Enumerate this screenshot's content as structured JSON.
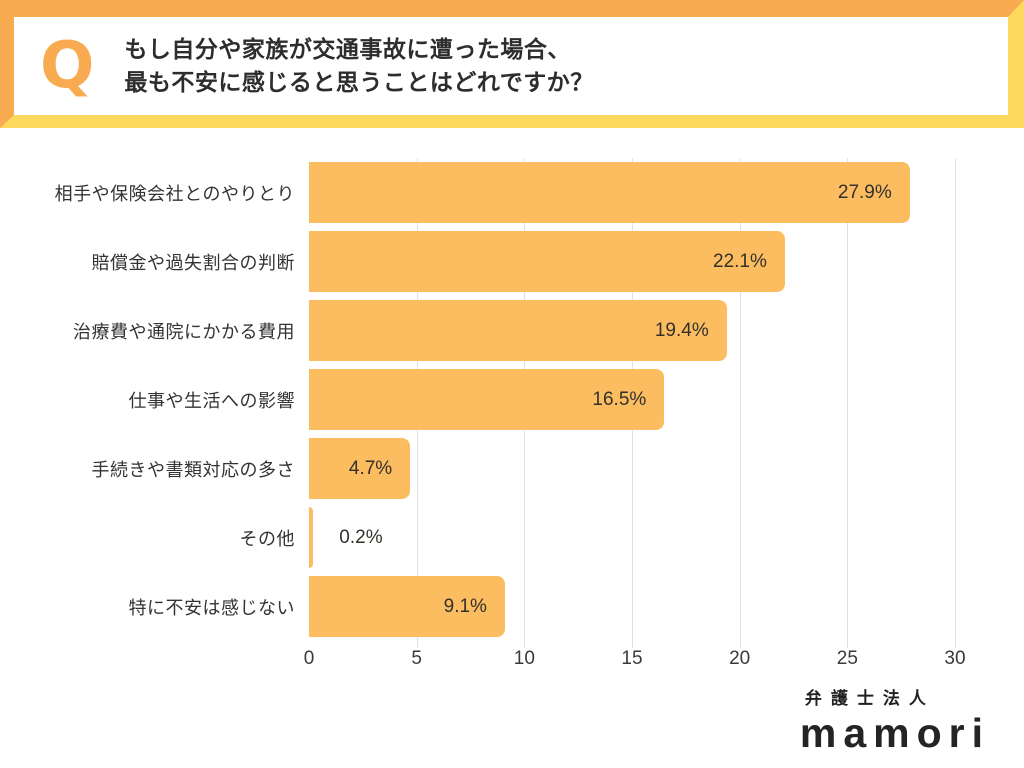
{
  "header": {
    "q_label": "Q",
    "question_line1": "もし自分や家族が交通事故に遭った場合、",
    "question_line2": "最も不安に感じると思うことはどれですか？"
  },
  "chart_data": {
    "type": "bar",
    "orientation": "horizontal",
    "categories": [
      "相手や保険会社とのやりとり",
      "賠償金や過失割合の判断",
      "治療費や通院にかかる費用",
      "仕事や生活への影響",
      "手続きや書類対応の多さ",
      "その他",
      "特に不安は感じない"
    ],
    "values": [
      27.9,
      22.1,
      19.4,
      16.5,
      4.7,
      0.2,
      9.1
    ],
    "value_labels": [
      "27.9%",
      "22.1%",
      "19.4%",
      "16.5%",
      "4.7%",
      "0.2%",
      "9.1%"
    ],
    "xlim": [
      0,
      30
    ],
    "x_ticks": [
      0,
      5,
      10,
      15,
      20,
      25,
      30
    ],
    "grid": true,
    "title": "",
    "xlabel": "",
    "ylabel": ""
  },
  "footer": {
    "company_type": "弁護士法人",
    "brand": "mamori"
  },
  "colors": {
    "accent_orange": "#F8AB51",
    "accent_yellow": "#FDD95E",
    "bar": "#FBBD60",
    "gridline": "#E0E0E0",
    "text": "#333333"
  }
}
